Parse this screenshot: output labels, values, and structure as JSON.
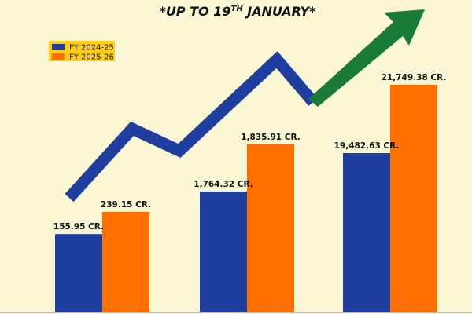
{
  "chart_data": {
    "type": "bar",
    "title": {
      "prefix": "*UP TO 19",
      "superscript": "TH",
      "suffix": " JANUARY*"
    },
    "categories": [
      "",
      "",
      ""
    ],
    "series": [
      {
        "name": "FY 2024-25",
        "color": "#1f3fa0",
        "values": [
          155.95,
          1764.32,
          19482.63
        ],
        "labels": [
          "155.95 CR.",
          "1,764.32 CR.",
          "19,482.63 CR."
        ]
      },
      {
        "name": "FY 2025-26",
        "color": "#ff7000",
        "values": [
          239.15,
          1835.91,
          21749.38
        ],
        "labels": [
          "239.15 CR.",
          "1,835.91 CR.",
          "21,749.38 CR."
        ]
      }
    ],
    "legend_position": "top-left",
    "axis_visible": false,
    "trend_arrow": {
      "line_color": "#1f3fa0",
      "head_color": "#1a7a3a"
    }
  }
}
